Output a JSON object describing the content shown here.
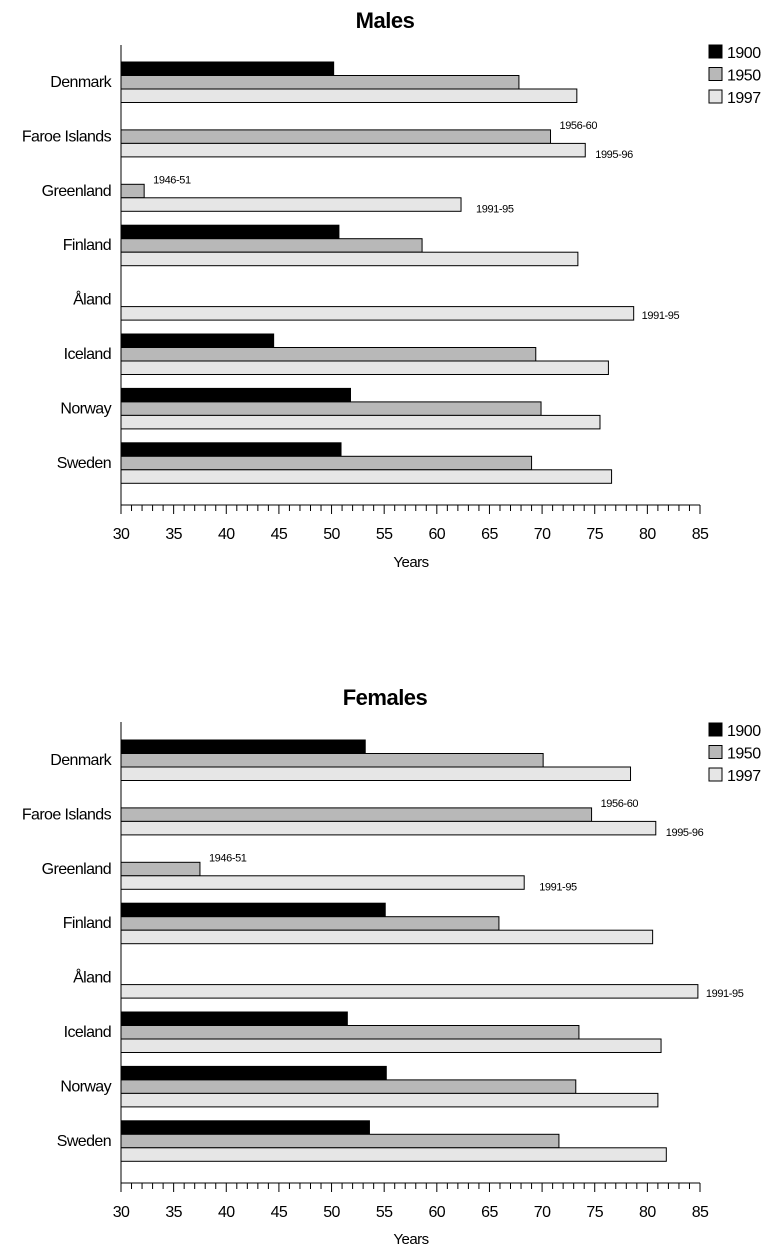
{
  "chart_data": [
    {
      "type": "bar",
      "orientation": "horizontal",
      "title": "Males",
      "xlabel": "Years",
      "xlim": [
        30,
        85
      ],
      "xticks": [
        30,
        35,
        40,
        45,
        50,
        55,
        60,
        65,
        70,
        75,
        80,
        85
      ],
      "categories": [
        "Denmark",
        "Faroe Islands",
        "Greenland",
        "Finland",
        "Åland",
        "Iceland",
        "Norway",
        "Sweden"
      ],
      "series": [
        {
          "name": "1900",
          "color": "#000000",
          "values": [
            50.2,
            null,
            null,
            50.7,
            null,
            44.5,
            51.8,
            50.9
          ]
        },
        {
          "name": "1950",
          "color": "#b8b8b8",
          "values": [
            67.8,
            70.8,
            32.2,
            58.6,
            null,
            69.4,
            69.9,
            69.0
          ]
        },
        {
          "name": "1997",
          "color": "#e6e6e6",
          "values": [
            73.3,
            74.1,
            62.3,
            73.4,
            78.7,
            76.3,
            75.5,
            76.6
          ]
        }
      ],
      "annotations": [
        {
          "category": "Faroe Islands",
          "series": "1950",
          "text": "1956-60"
        },
        {
          "category": "Faroe Islands",
          "series": "1997",
          "text": "1995-96"
        },
        {
          "category": "Greenland",
          "series": "1950",
          "text": "1946-51"
        },
        {
          "category": "Greenland",
          "series": "1997",
          "text": "1991-95"
        },
        {
          "category": "Åland",
          "series": "1997",
          "text": "1991-95"
        }
      ],
      "legend": "top-right",
      "grid": false
    },
    {
      "type": "bar",
      "orientation": "horizontal",
      "title": "Females",
      "xlabel": "Years",
      "xlim": [
        30,
        85
      ],
      "xticks": [
        30,
        35,
        40,
        45,
        50,
        55,
        60,
        65,
        70,
        75,
        80,
        85
      ],
      "categories": [
        "Denmark",
        "Faroe Islands",
        "Greenland",
        "Finland",
        "Åland",
        "Iceland",
        "Norway",
        "Sweden"
      ],
      "series": [
        {
          "name": "1900",
          "color": "#000000",
          "values": [
            53.2,
            null,
            null,
            55.1,
            null,
            51.5,
            55.2,
            53.6
          ]
        },
        {
          "name": "1950",
          "color": "#b8b8b8",
          "values": [
            70.1,
            74.7,
            37.5,
            65.9,
            null,
            73.5,
            73.2,
            71.6
          ]
        },
        {
          "name": "1997",
          "color": "#e6e6e6",
          "values": [
            78.4,
            80.8,
            68.3,
            80.5,
            84.8,
            81.3,
            81.0,
            81.8
          ]
        }
      ],
      "annotations": [
        {
          "category": "Faroe Islands",
          "series": "1950",
          "text": "1956-60"
        },
        {
          "category": "Faroe Islands",
          "series": "1997",
          "text": "1995-96"
        },
        {
          "category": "Greenland",
          "series": "1950",
          "text": "1946-51"
        },
        {
          "category": "Greenland",
          "series": "1997",
          "text": "1991-95"
        },
        {
          "category": "Åland",
          "series": "1997",
          "text": "1991-95"
        }
      ],
      "legend": "top-right",
      "grid": false
    }
  ]
}
